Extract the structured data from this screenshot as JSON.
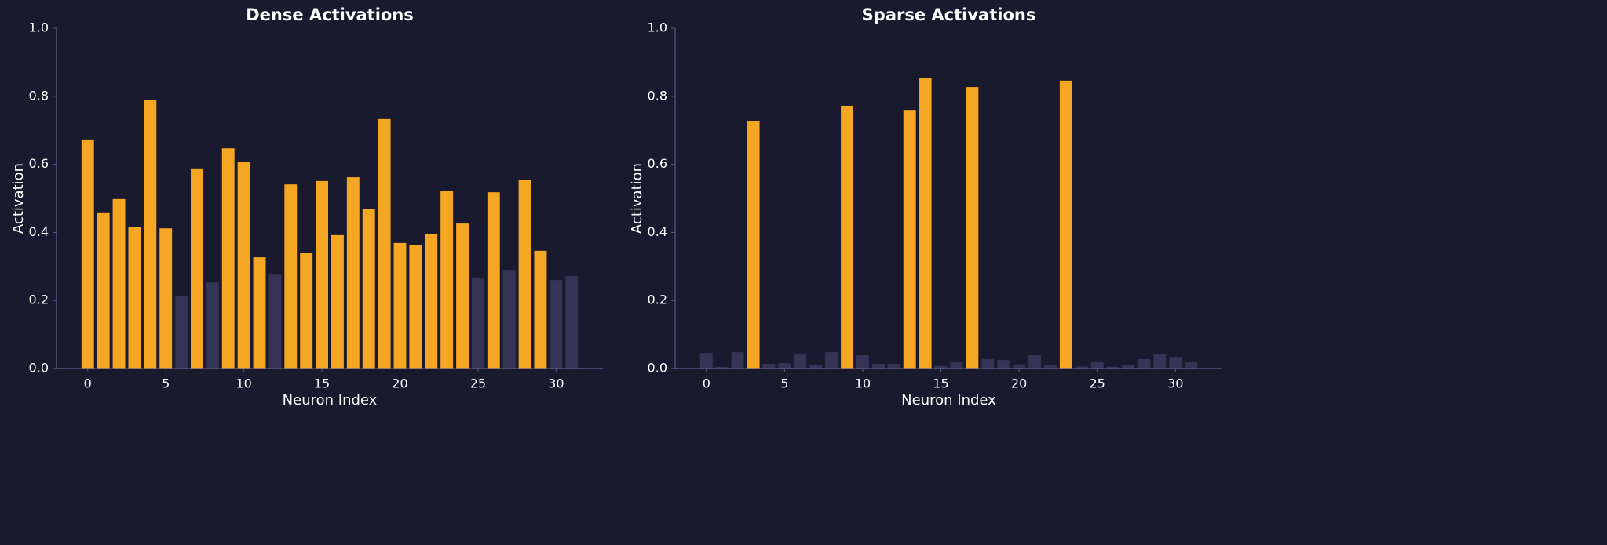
{
  "chart_data": [
    {
      "type": "bar",
      "title": "Dense Activations",
      "xlabel": "Neuron Index",
      "ylabel": "Activation",
      "categories": [
        0,
        1,
        2,
        3,
        4,
        5,
        6,
        7,
        8,
        9,
        10,
        11,
        12,
        13,
        14,
        15,
        16,
        17,
        18,
        19,
        20,
        21,
        22,
        23,
        24,
        25,
        26,
        27,
        28,
        29,
        30,
        31
      ],
      "values": [
        0.673,
        0.459,
        0.498,
        0.417,
        0.79,
        0.412,
        0.212,
        0.588,
        0.253,
        0.647,
        0.606,
        0.327,
        0.276,
        0.541,
        0.341,
        0.551,
        0.392,
        0.562,
        0.468,
        0.733,
        0.369,
        0.362,
        0.396,
        0.523,
        0.426,
        0.265,
        0.518,
        0.29,
        0.555,
        0.346,
        0.26,
        0.272
      ],
      "colors": [
        "#f5a623",
        "#f5a623",
        "#f5a623",
        "#f5a623",
        "#f5a623",
        "#f5a623",
        "#363456",
        "#f5a623",
        "#363456",
        "#f5a623",
        "#f5a623",
        "#f5a623",
        "#363456",
        "#f5a623",
        "#f5a623",
        "#f5a623",
        "#f5a623",
        "#f5a623",
        "#f5a623",
        "#f5a623",
        "#f5a623",
        "#f5a623",
        "#f5a623",
        "#f5a623",
        "#f5a623",
        "#363456",
        "#f5a623",
        "#363456",
        "#f5a623",
        "#f5a623",
        "#363456",
        "#363456"
      ],
      "xlim": [
        -2,
        33
      ],
      "xticks": [
        0,
        5,
        10,
        15,
        20,
        25,
        30
      ],
      "ylim": [
        0,
        1
      ],
      "yticks": [
        {
          "value": 0,
          "label": "0.0"
        },
        0.2,
        0.4,
        0.6,
        0.8,
        {
          "value": 1,
          "label": "1.0"
        }
      ]
    },
    {
      "type": "bar",
      "title": "Sparse Activations",
      "xlabel": "Neuron Index",
      "ylabel": "Activation",
      "categories": [
        0,
        1,
        2,
        3,
        4,
        5,
        6,
        7,
        8,
        9,
        10,
        11,
        12,
        13,
        14,
        15,
        16,
        17,
        18,
        19,
        20,
        21,
        22,
        23,
        24,
        25,
        26,
        27,
        28,
        29,
        30,
        31
      ],
      "values": [
        0.046,
        0.005,
        0.048,
        0.728,
        0.014,
        0.016,
        0.044,
        0.009,
        0.048,
        0.772,
        0.039,
        0.014,
        0.014,
        0.76,
        0.853,
        0.007,
        0.021,
        0.827,
        0.028,
        0.025,
        0.012,
        0.039,
        0.009,
        0.846,
        0.006,
        0.021,
        0.005,
        0.009,
        0.028,
        0.042,
        0.034,
        0.021
      ],
      "colors": [
        "#363456",
        "#363456",
        "#363456",
        "#f5a623",
        "#363456",
        "#363456",
        "#363456",
        "#363456",
        "#363456",
        "#f5a623",
        "#363456",
        "#363456",
        "#363456",
        "#f5a623",
        "#f5a623",
        "#363456",
        "#363456",
        "#f5a623",
        "#363456",
        "#363456",
        "#363456",
        "#363456",
        "#363456",
        "#f5a623",
        "#363456",
        "#363456",
        "#363456",
        "#363456",
        "#363456",
        "#363456",
        "#363456",
        "#363456"
      ],
      "xlim": [
        -2,
        33
      ],
      "xticks": [
        0,
        5,
        10,
        15,
        20,
        25,
        30
      ],
      "ylim": [
        0,
        1
      ],
      "yticks": [
        {
          "value": 0,
          "label": "0.0"
        },
        0.2,
        0.4,
        0.6,
        0.8,
        {
          "value": 1,
          "label": "1.0"
        }
      ]
    }
  ]
}
